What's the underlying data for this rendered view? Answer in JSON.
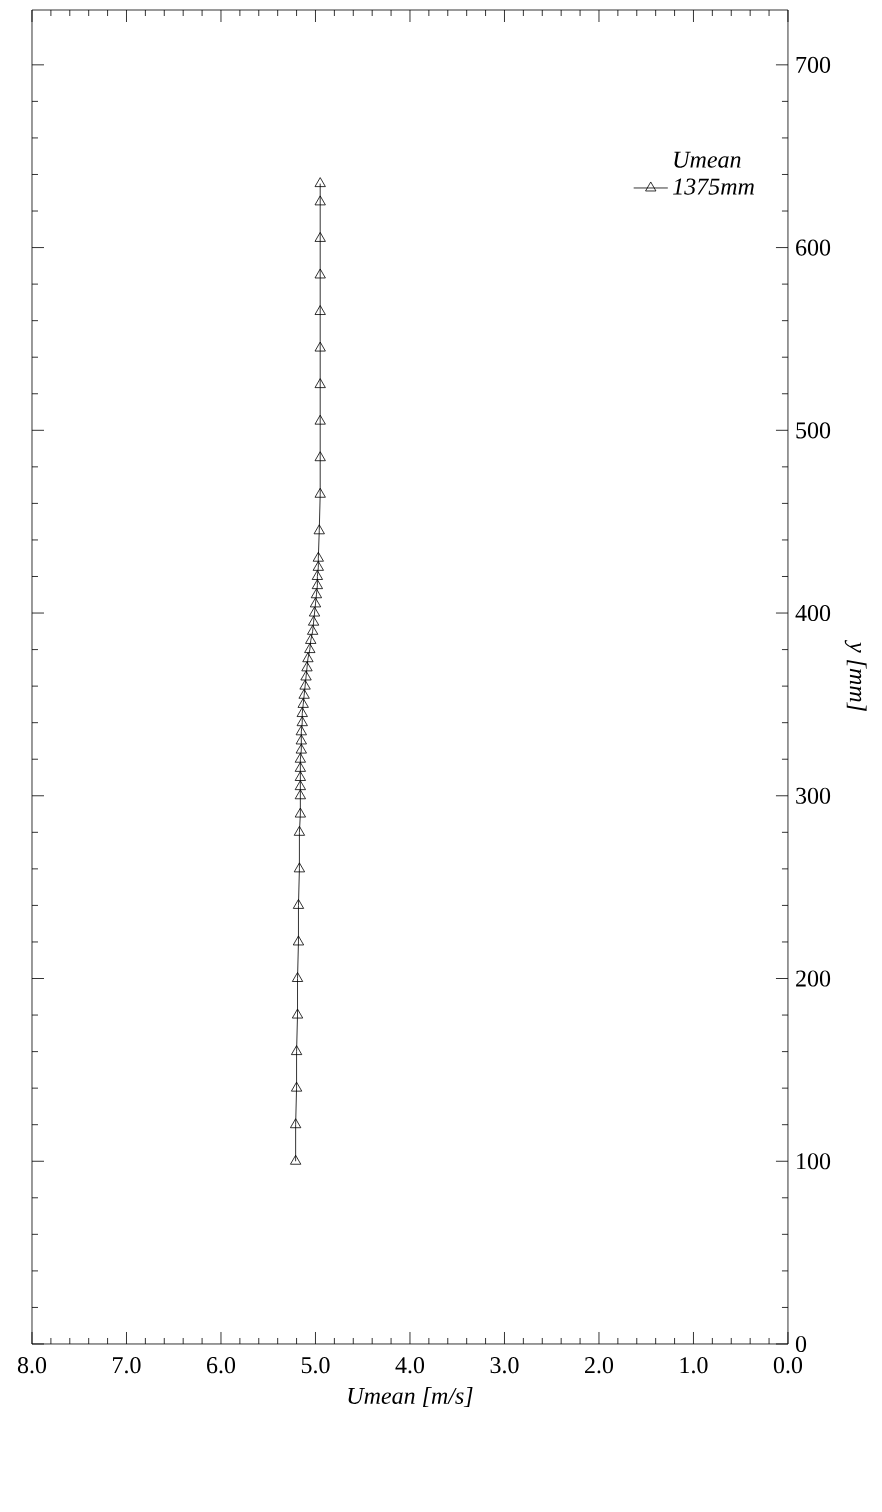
{
  "chart_data": {
    "type": "line",
    "xlabel": "Umean [m/s]",
    "ylabel": "y [mm]",
    "legend_title": "Umean",
    "xlim": [
      8,
      0
    ],
    "ylim": [
      0,
      730
    ],
    "yticks": [
      0,
      100,
      200,
      300,
      400,
      500,
      600,
      700
    ],
    "xticks": [
      {
        "value": 0,
        "label": "0.0"
      },
      {
        "value": 1,
        "label": "1.0"
      },
      {
        "value": 2,
        "label": "2.0"
      },
      {
        "value": 3,
        "label": "3.0"
      },
      {
        "value": 4,
        "label": "4.0"
      },
      {
        "value": 5,
        "label": "5.0"
      },
      {
        "value": 6,
        "label": "6.0"
      },
      {
        "value": 7,
        "label": "7.0"
      },
      {
        "value": 8,
        "label": "8.0"
      }
    ],
    "grid": false,
    "legend": "top right",
    "marker": "triangle",
    "line_style": "solid",
    "series": [
      {
        "name": "1375mm",
        "color": "#000000",
        "values": [
          100,
          120,
          140,
          160,
          180,
          200,
          220,
          240,
          260,
          280,
          290,
          300,
          305,
          310,
          315,
          320,
          325,
          330,
          335,
          340,
          345,
          350,
          355,
          360,
          365,
          370,
          375,
          380,
          385,
          390,
          395,
          400,
          405,
          410,
          415,
          420,
          425,
          430,
          445,
          465,
          485,
          505,
          525,
          545,
          565,
          585,
          605,
          625,
          635
        ],
        "x": [
          5.21,
          5.21,
          5.2,
          5.2,
          5.19,
          5.19,
          5.18,
          5.18,
          5.17,
          5.17,
          5.16,
          5.16,
          5.16,
          5.16,
          5.16,
          5.16,
          5.15,
          5.15,
          5.15,
          5.14,
          5.14,
          5.13,
          5.12,
          5.11,
          5.1,
          5.09,
          5.08,
          5.06,
          5.05,
          5.03,
          5.02,
          5.01,
          5.0,
          4.99,
          4.98,
          4.98,
          4.97,
          4.97,
          4.96,
          4.95,
          4.95,
          4.95,
          4.95,
          4.95,
          4.95,
          4.95,
          4.95,
          4.95,
          4.95
        ]
      }
    ]
  }
}
